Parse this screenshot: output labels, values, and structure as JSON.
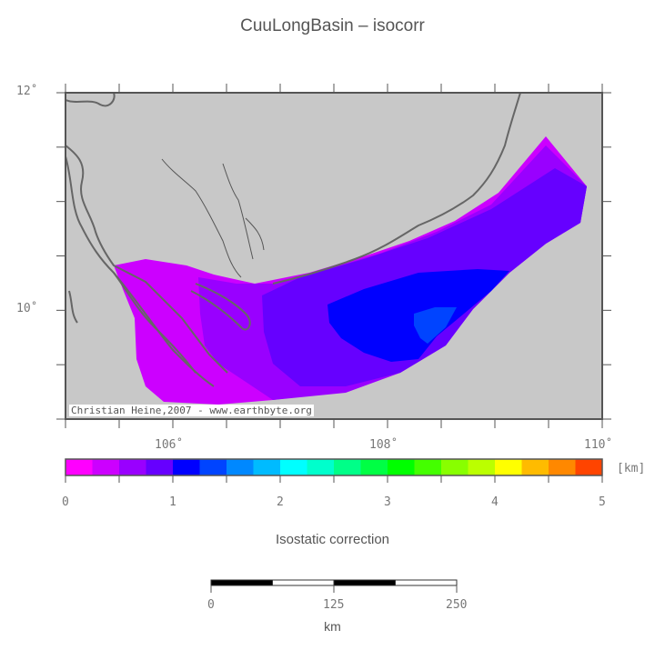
{
  "title": "CuuLongBasin – isocorr",
  "map": {
    "lon_range": [
      105,
      110
    ],
    "lat_range": [
      9,
      12
    ],
    "land_color": "#c8c8c8",
    "coast_color": "#666666",
    "lat_ticks": [
      {
        "value": 12,
        "label": "12˚"
      },
      {
        "value": 10,
        "label": "10˚"
      }
    ],
    "lon_ticks": [
      {
        "value": 106,
        "label": "106˚"
      },
      {
        "value": 108,
        "label": "108˚"
      },
      {
        "value": 110,
        "label": "110˚"
      }
    ],
    "credit": "Christian Heine,2007 - www.earthbyte.org"
  },
  "colorbar": {
    "title": "Isostatic correction",
    "unit": "[km]",
    "range": [
      0,
      5
    ],
    "ticks": [
      {
        "value": 0,
        "label": "0"
      },
      {
        "value": 1,
        "label": "1"
      },
      {
        "value": 2,
        "label": "2"
      },
      {
        "value": 3,
        "label": "3"
      },
      {
        "value": 4,
        "label": "4"
      },
      {
        "value": 5,
        "label": "5"
      }
    ],
    "colors": [
      "#ff00ff",
      "#cc00ff",
      "#9900ff",
      "#6600ff",
      "#0000ff",
      "#0044ff",
      "#0088ff",
      "#00bbff",
      "#00ffff",
      "#00ffcc",
      "#00ff88",
      "#00ff44",
      "#00ff00",
      "#44ff00",
      "#88ff00",
      "#bbff00",
      "#ffff00",
      "#ffbb00",
      "#ff8800",
      "#ff4400"
    ]
  },
  "scalebar": {
    "unit": "km",
    "ticks": [
      {
        "value": 0,
        "label": "0"
      },
      {
        "value": 125,
        "label": "125"
      },
      {
        "value": 250,
        "label": "250"
      }
    ]
  }
}
